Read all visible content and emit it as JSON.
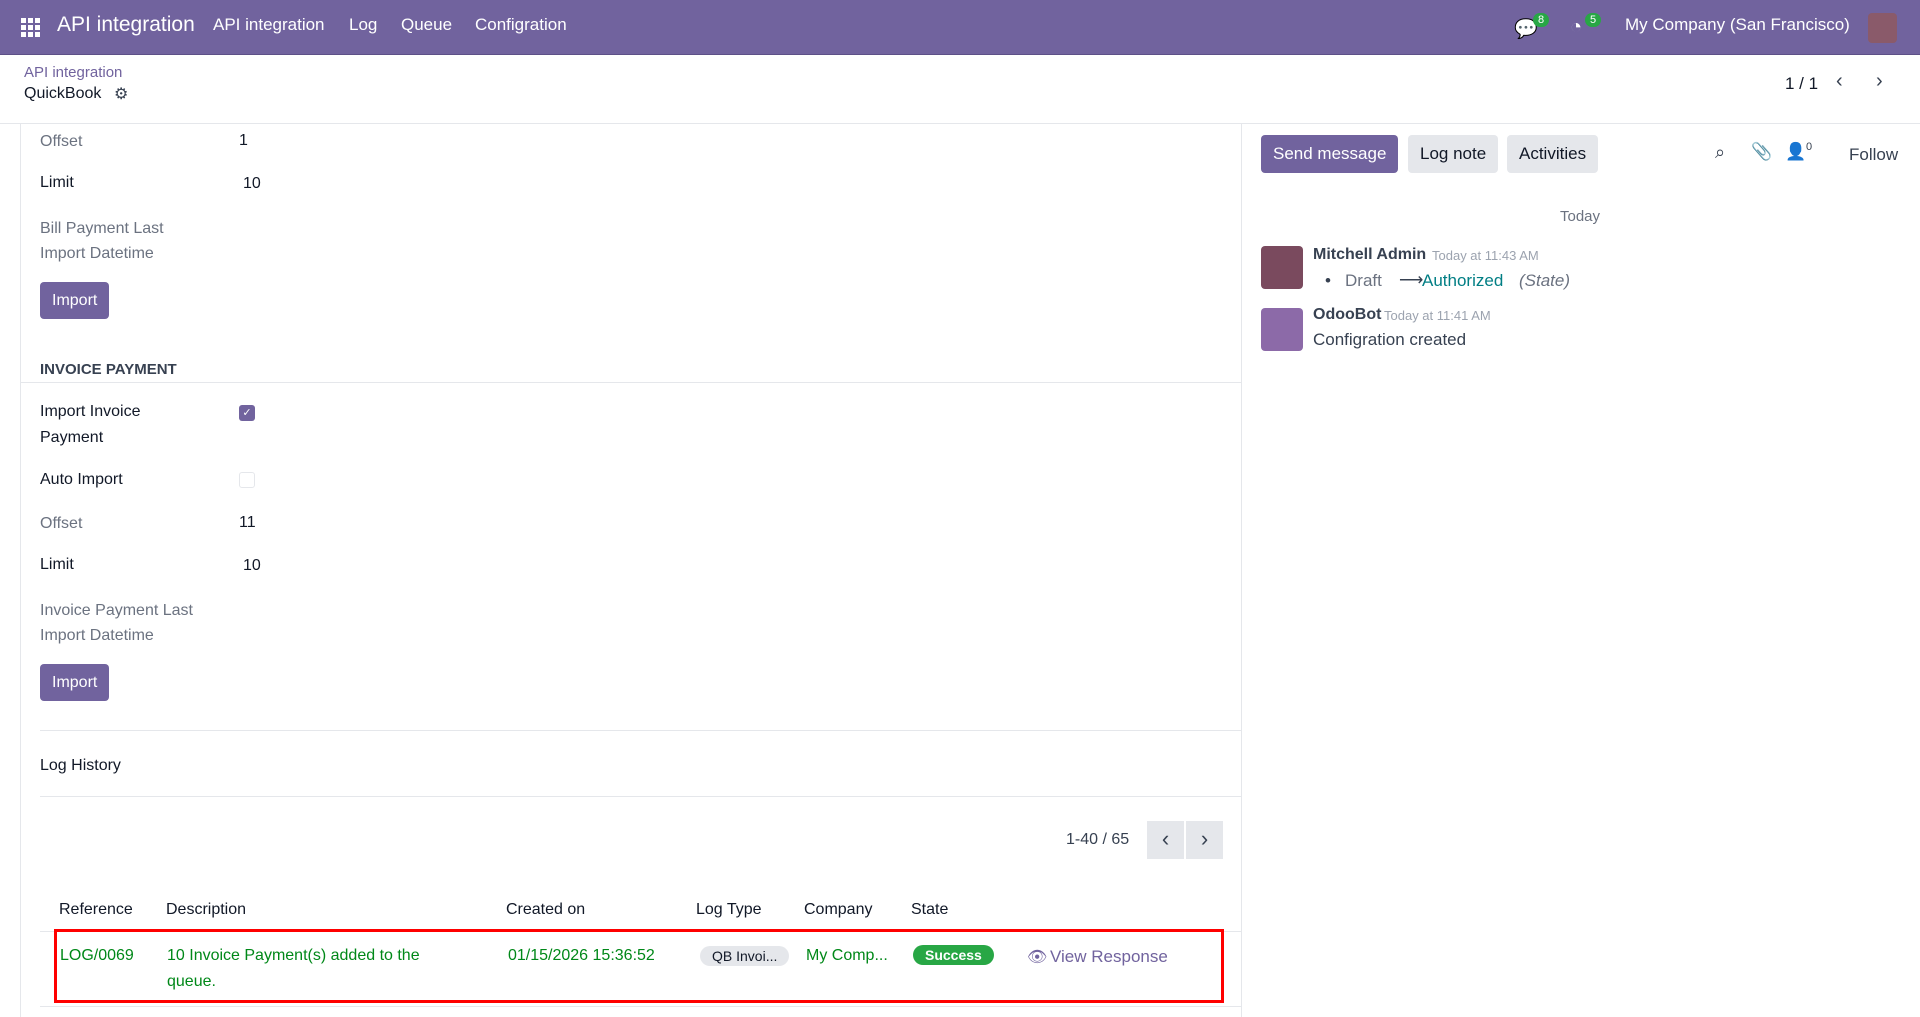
{
  "navbar": {
    "app_title": "API integration",
    "menu": [
      "API integration",
      "Log",
      "Queue",
      "Configration"
    ],
    "messages_count": "8",
    "activities_count": "5",
    "company": "My Company (San Francisco)",
    "brand_color": "#71639e"
  },
  "control_panel": {
    "breadcrumb": "API integration",
    "record": "QuickBook",
    "pager": "1 / 1"
  },
  "form": {
    "bill_payment": {
      "offset_label": "Offset",
      "offset": "1",
      "limit_label": "Limit",
      "limit": "10",
      "last_label_1": "Bill Payment Last",
      "last_label_2": "Import Datetime",
      "import_button": "Import"
    },
    "invoice_payment": {
      "heading": "INVOICE PAYMENT",
      "import_label_1": "Import Invoice",
      "import_label_2": "Payment",
      "import_checked": true,
      "auto_label": "Auto Import",
      "auto_checked": false,
      "offset_label": "Offset",
      "offset": "11",
      "limit_label": "Limit",
      "limit": "10",
      "last_label_1": "Invoice Payment Last",
      "last_label_2": "Import Datetime",
      "import_button": "Import"
    },
    "log_history": {
      "title": "Log History",
      "pager": "1-40 / 65",
      "columns": [
        "Reference",
        "Description",
        "Created on",
        "Log Type",
        "Company",
        "State"
      ],
      "rows": [
        {
          "reference": "LOG/0069",
          "description_1": "10 Invoice Payment(s) added to the",
          "description_2": "queue.",
          "created_on": "01/15/2026 15:36:52",
          "log_type": "QB Invoi...",
          "company": "My Comp...",
          "state": "Success",
          "action": "View Response"
        }
      ]
    }
  },
  "chatter": {
    "send_message": "Send message",
    "log_note": "Log note",
    "activities": "Activities",
    "followers_count": "0",
    "follow": "Follow",
    "date_separator": "Today",
    "messages": [
      {
        "author": "Mitchell Admin",
        "time": "Today at 11:43 AM",
        "from": "Draft",
        "to": "Authorized",
        "field": "(State)"
      },
      {
        "author": "OdooBot",
        "time": "Today at 11:41 AM",
        "body": "Configration created"
      }
    ]
  }
}
